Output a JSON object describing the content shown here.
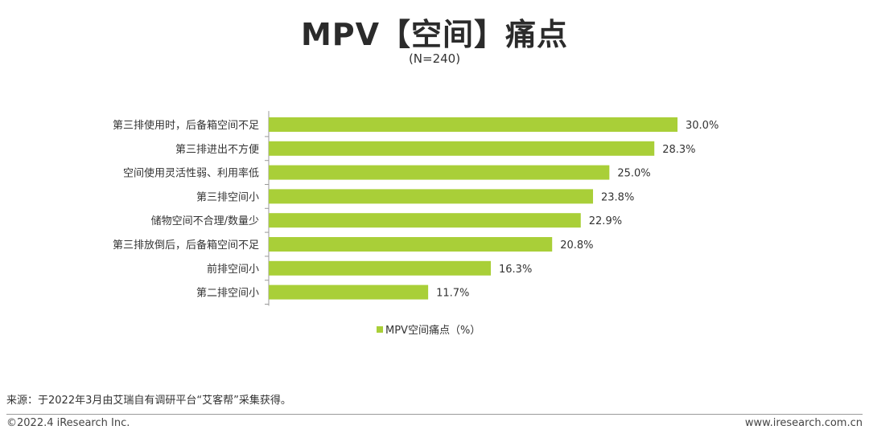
{
  "colors": {
    "bar": "#a9cf38",
    "axis": "#999999",
    "text": "#333333"
  },
  "chart_data": {
    "type": "bar",
    "orientation": "horizontal",
    "title": "MPV【空间】痛点",
    "subtitle": "(N=240)",
    "categories": [
      "第三排使用时，后备箱空间不足",
      "第三排进出不方便",
      "空间使用灵活性弱、利用率低",
      "第三排空间小",
      "储物空间不合理/数量少",
      "第三排放倒后，后备箱空间不足",
      "前排空间小",
      "第二排空间小"
    ],
    "values": [
      30.0,
      28.3,
      25.0,
      23.8,
      22.9,
      20.8,
      16.3,
      11.7
    ],
    "labels": [
      "30.0%",
      "28.3%",
      "25.0%",
      "23.8%",
      "22.9%",
      "20.8%",
      "16.3%",
      "11.7%"
    ],
    "xlim": [
      0,
      30.0
    ],
    "legend": "MPV空间痛点（%）",
    "legend_position": "bottom-center",
    "grid": false
  },
  "footer": {
    "source": "来源：于2022年3月由艾瑞自有调研平台“艾客帮”采集获得。",
    "copyright": "©2022.4 iResearch Inc.",
    "website": "www.iresearch.com.cn"
  }
}
